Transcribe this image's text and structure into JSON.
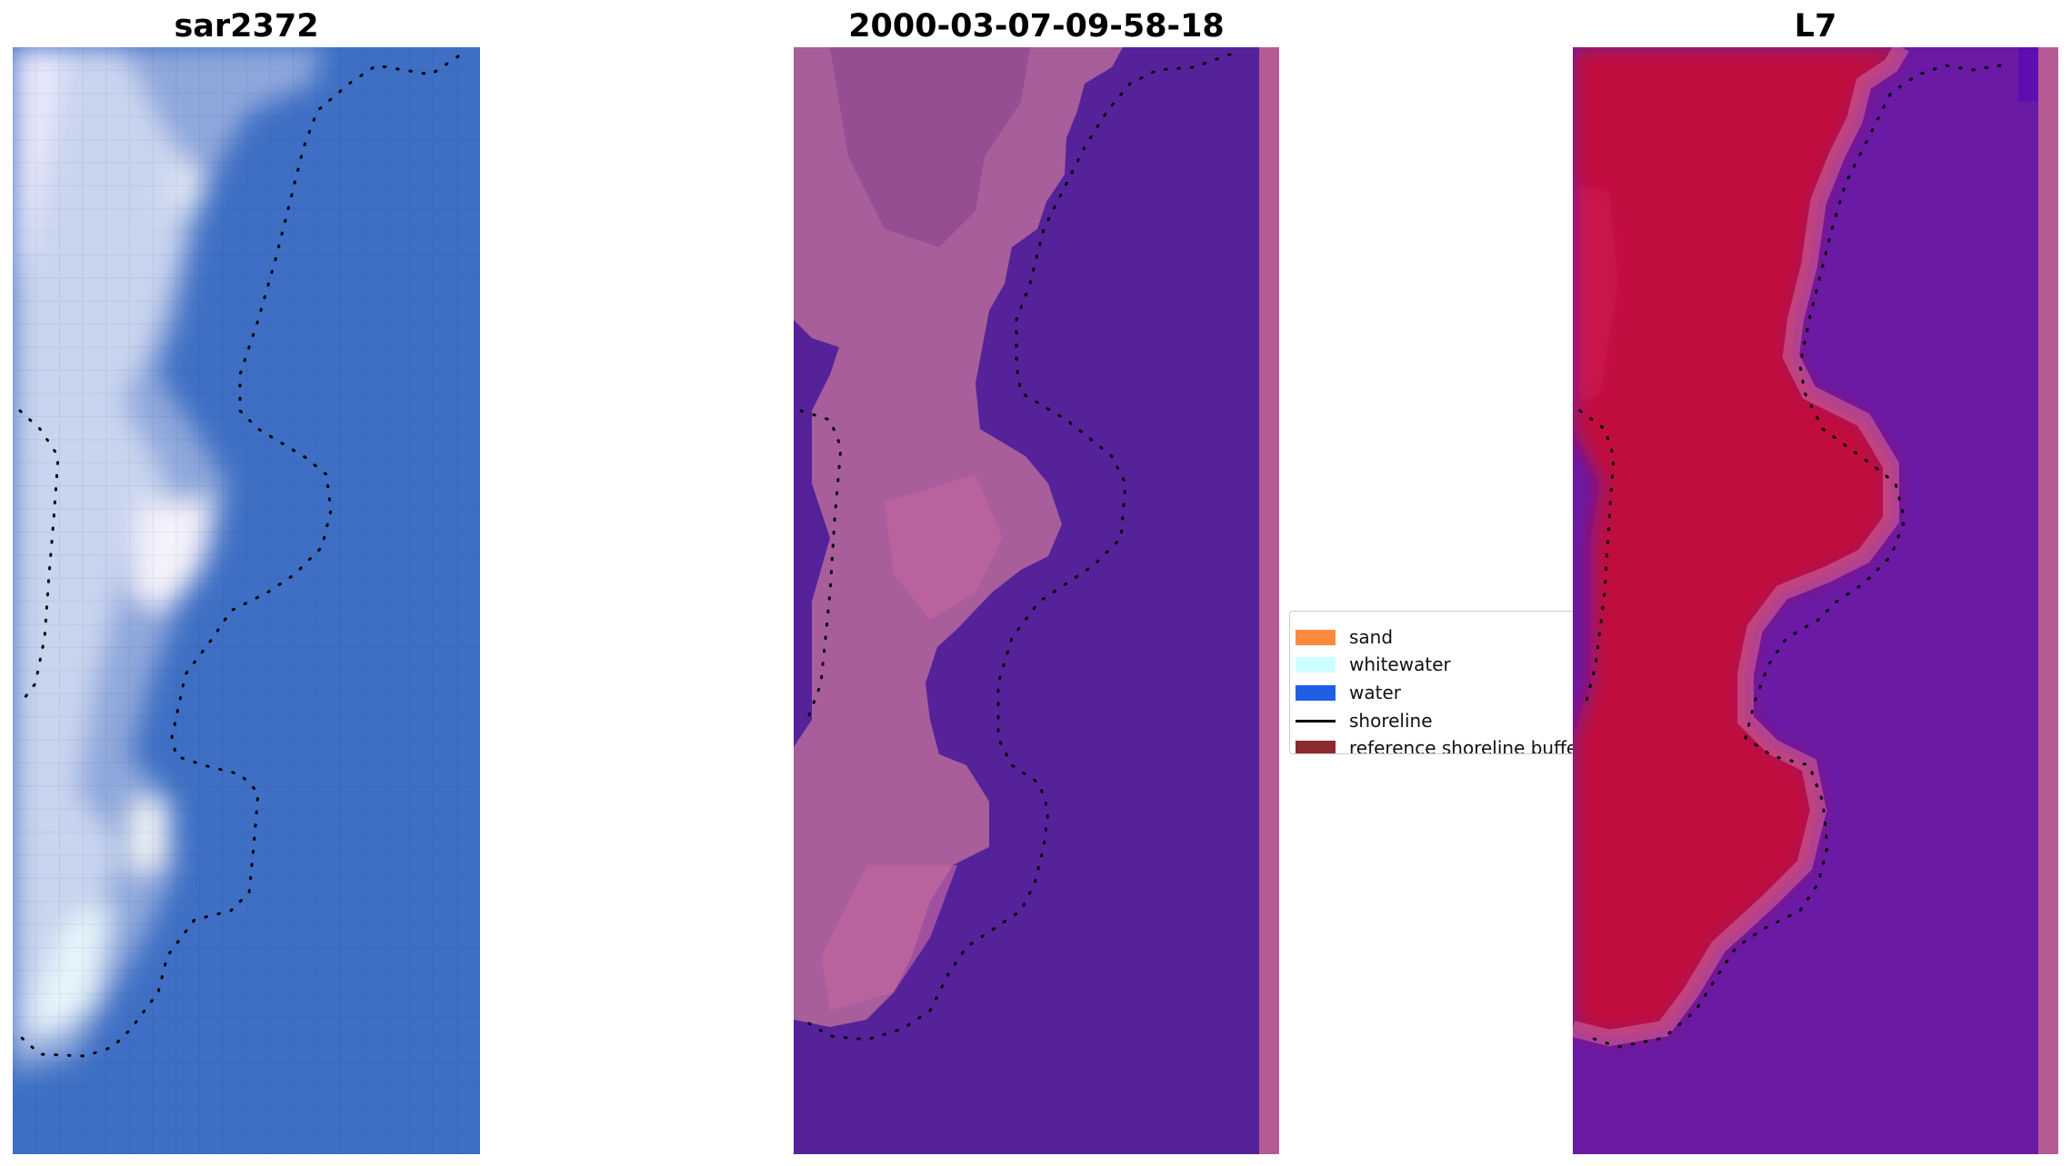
{
  "panels": [
    {
      "title": "sar2372"
    },
    {
      "title": "2000-03-07-09-58-18"
    },
    {
      "title": "L7"
    }
  ],
  "legend": {
    "items": [
      {
        "label": "sand",
        "color": "#ff8a3d",
        "kind": "patch"
      },
      {
        "label": "whitewater",
        "color": "#ccfffe",
        "kind": "patch"
      },
      {
        "label": "water",
        "color": "#1f5fe6",
        "kind": "patch"
      },
      {
        "label": "shoreline",
        "color": "#000000",
        "kind": "line"
      },
      {
        "label": "reference shoreline buffer",
        "color": "#8b2a2f",
        "kind": "patch"
      }
    ]
  },
  "colors": {
    "rgb_water": "#3f6fc4",
    "rgb_foam": "#e8ecfb",
    "classified_water": "#55229a",
    "classified_land": "#b65a96",
    "mndwi_land": "#c0103e",
    "mndwi_water": "#6a1aa4"
  }
}
